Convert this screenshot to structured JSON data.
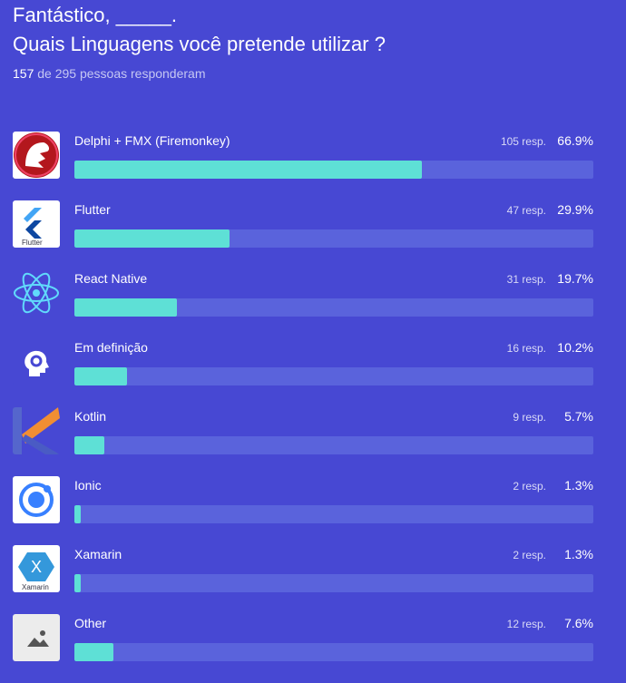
{
  "header": {
    "greeting": "Fantástico, _____.",
    "question": "Quais Linguagens você pretende utilizar ?"
  },
  "summary": {
    "answered": "157",
    "rest": "de 295 pessoas responderam"
  },
  "options": [
    {
      "label": "Delphi + FMX (Firemonkey)",
      "responses": "105 resp.",
      "percent": 66.9,
      "percent_label": "66.9%"
    },
    {
      "label": "Flutter",
      "icon_caption": "Flutter",
      "responses": "47 resp.",
      "percent": 29.9,
      "percent_label": "29.9%"
    },
    {
      "label": "React Native",
      "responses": "31 resp.",
      "percent": 19.7,
      "percent_label": "19.7%"
    },
    {
      "label": "Em definição",
      "responses": "16 resp.",
      "percent": 10.2,
      "percent_label": "10.2%"
    },
    {
      "label": "Kotlin",
      "responses": "9 resp.",
      "percent": 5.7,
      "percent_label": "5.7%"
    },
    {
      "label": "Ionic",
      "responses": "2 resp.",
      "percent": 1.3,
      "percent_label": "1.3%"
    },
    {
      "label": "Xamarin",
      "icon_caption": "Xamarin",
      "responses": "2 resp.",
      "percent": 1.3,
      "percent_label": "1.3%"
    },
    {
      "label": "Other",
      "responses": "12 resp.",
      "percent": 7.6,
      "percent_label": "7.6%"
    }
  ]
}
